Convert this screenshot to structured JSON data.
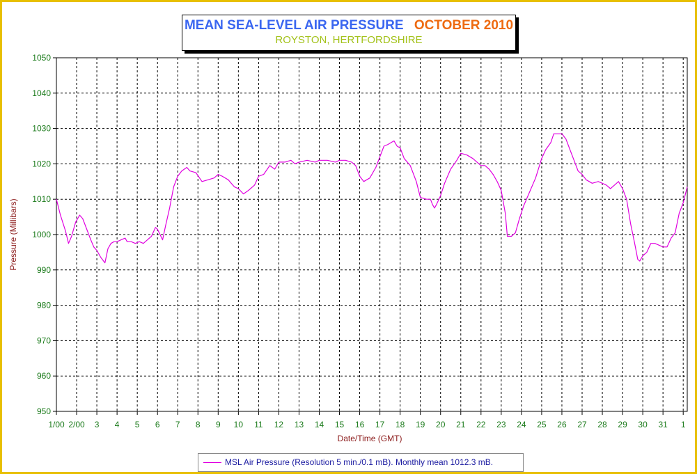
{
  "chart_data": {
    "type": "line",
    "title": "MEAN SEA-LEVEL AIR PRESSURE",
    "title_month": "OCTOBER 2010",
    "subtitle": "ROYSTON, HERTFORDSHIRE",
    "xlabel": "Date/Time (GMT)",
    "ylabel": "Pressure (Millibars)",
    "ylim": [
      950,
      1050
    ],
    "yticks": [
      950,
      960,
      970,
      980,
      990,
      1000,
      1010,
      1020,
      1030,
      1040,
      1050
    ],
    "xlim": [
      1.0,
      32.2
    ],
    "x_unit": "day of month (fractional)",
    "xticks": [
      {
        "x": 1.0,
        "label": "1/00"
      },
      {
        "x": 2.0,
        "label": "2/00"
      },
      {
        "x": 3.0,
        "label": "3"
      },
      {
        "x": 4.0,
        "label": "4"
      },
      {
        "x": 5.0,
        "label": "5"
      },
      {
        "x": 6.0,
        "label": "6"
      },
      {
        "x": 7.0,
        "label": "7"
      },
      {
        "x": 8.0,
        "label": "8"
      },
      {
        "x": 9.0,
        "label": "9"
      },
      {
        "x": 10.0,
        "label": "10"
      },
      {
        "x": 11.0,
        "label": "11"
      },
      {
        "x": 12.0,
        "label": "12"
      },
      {
        "x": 13.0,
        "label": "13"
      },
      {
        "x": 14.0,
        "label": "14"
      },
      {
        "x": 15.0,
        "label": "15"
      },
      {
        "x": 16.0,
        "label": "16"
      },
      {
        "x": 17.0,
        "label": "17"
      },
      {
        "x": 18.0,
        "label": "18"
      },
      {
        "x": 19.0,
        "label": "19"
      },
      {
        "x": 20.0,
        "label": "20"
      },
      {
        "x": 21.0,
        "label": "21"
      },
      {
        "x": 22.0,
        "label": "22"
      },
      {
        "x": 23.0,
        "label": "23"
      },
      {
        "x": 24.0,
        "label": "24"
      },
      {
        "x": 25.0,
        "label": "25"
      },
      {
        "x": 26.0,
        "label": "26"
      },
      {
        "x": 27.0,
        "label": "27"
      },
      {
        "x": 28.0,
        "label": "28"
      },
      {
        "x": 29.0,
        "label": "29"
      },
      {
        "x": 30.0,
        "label": "30"
      },
      {
        "x": 31.0,
        "label": "31"
      },
      {
        "x": 32.0,
        "label": "1"
      }
    ],
    "grid": true,
    "legend_position": "bottom",
    "series": [
      {
        "name": "MSL Air Pressure (Resolution 5 min./0.1 mB). Monthly mean 1012.3 mB.",
        "color": "#e000e0",
        "x": [
          1.0,
          1.2,
          1.45,
          1.6,
          1.75,
          1.95,
          2.15,
          2.3,
          2.5,
          2.7,
          2.85,
          3.0,
          3.2,
          3.4,
          3.55,
          3.7,
          3.85,
          4.0,
          4.2,
          4.4,
          4.5,
          4.7,
          4.9,
          5.1,
          5.3,
          5.5,
          5.7,
          5.9,
          6.0,
          6.25,
          6.4,
          6.6,
          6.8,
          7.0,
          7.2,
          7.45,
          7.6,
          7.9,
          8.2,
          8.5,
          8.8,
          9.0,
          9.2,
          9.5,
          9.8,
          10.0,
          10.25,
          10.5,
          10.8,
          11.0,
          11.25,
          11.55,
          11.8,
          12.0,
          12.3,
          12.6,
          12.8,
          13.0,
          13.4,
          13.8,
          14.0,
          14.4,
          14.8,
          15.0,
          15.3,
          15.6,
          15.8,
          16.0,
          16.2,
          16.5,
          16.8,
          17.0,
          17.2,
          17.4,
          17.55,
          17.7,
          17.85,
          18.0,
          18.2,
          18.5,
          18.8,
          19.0,
          19.3,
          19.5,
          19.6,
          19.7,
          19.8,
          20.0,
          20.2,
          20.5,
          20.8,
          21.0,
          21.3,
          21.6,
          21.8,
          22.0,
          22.2,
          22.4,
          22.6,
          22.8,
          23.0,
          23.2,
          23.3,
          23.5,
          23.7,
          23.9,
          24.1,
          24.4,
          24.7,
          25.0,
          25.2,
          25.45,
          25.6,
          25.8,
          26.0,
          26.2,
          26.4,
          26.6,
          26.8,
          27.0,
          27.2,
          27.5,
          27.8,
          28.0,
          28.2,
          28.4,
          28.6,
          28.8,
          29.0,
          29.2,
          29.4,
          29.6,
          29.75,
          29.85,
          30.0,
          30.2,
          30.4,
          30.6,
          30.8,
          31.0,
          31.2,
          31.4,
          31.6,
          31.8,
          32.0,
          32.2
        ],
        "y": [
          1010.0,
          1005.5,
          1001.0,
          997.5,
          999.5,
          1003.5,
          1005.5,
          1004.5,
          1001.5,
          998.5,
          996.5,
          995.5,
          993.5,
          992.0,
          996.0,
          997.5,
          998.0,
          998.0,
          998.5,
          999.0,
          998.0,
          998.0,
          997.5,
          998.0,
          997.5,
          998.5,
          999.5,
          1002.0,
          1001.5,
          998.5,
          1002.5,
          1007.5,
          1013.5,
          1016.5,
          1018.0,
          1019.0,
          1018.0,
          1017.5,
          1015.0,
          1015.5,
          1016.0,
          1017.0,
          1016.5,
          1015.5,
          1013.5,
          1013.0,
          1011.5,
          1012.5,
          1014.0,
          1016.5,
          1017.0,
          1019.5,
          1018.5,
          1020.5,
          1020.5,
          1021.0,
          1020.0,
          1020.5,
          1021.0,
          1020.5,
          1021.0,
          1021.0,
          1020.5,
          1021.0,
          1021.0,
          1020.5,
          1019.5,
          1016.5,
          1015.0,
          1016.0,
          1019.0,
          1022.0,
          1025.0,
          1025.5,
          1026.0,
          1026.5,
          1025.0,
          1024.5,
          1021.5,
          1019.5,
          1015.0,
          1010.5,
          1010.0,
          1010.0,
          1008.5,
          1007.5,
          1008.5,
          1011.0,
          1014.5,
          1018.5,
          1021.0,
          1023.0,
          1022.5,
          1021.5,
          1020.5,
          1019.5,
          1019.5,
          1018.5,
          1017.0,
          1015.0,
          1012.5,
          1006.0,
          999.5,
          999.5,
          1000.5,
          1004.5,
          1008.0,
          1012.0,
          1016.0,
          1021.5,
          1024.0,
          1026.0,
          1028.5,
          1028.5,
          1028.5,
          1027.0,
          1024.0,
          1021.0,
          1018.0,
          1017.0,
          1015.5,
          1014.5,
          1015.0,
          1014.5,
          1014.0,
          1013.0,
          1014.0,
          1015.0,
          1013.0,
          1010.0,
          1003.0,
          997.5,
          993.0,
          992.5,
          994.0,
          995.0,
          997.5,
          997.5,
          997.0,
          996.5,
          996.5,
          999.0,
          1000.5,
          1006.0,
          1009.0,
          1013.5
        ]
      }
    ]
  }
}
